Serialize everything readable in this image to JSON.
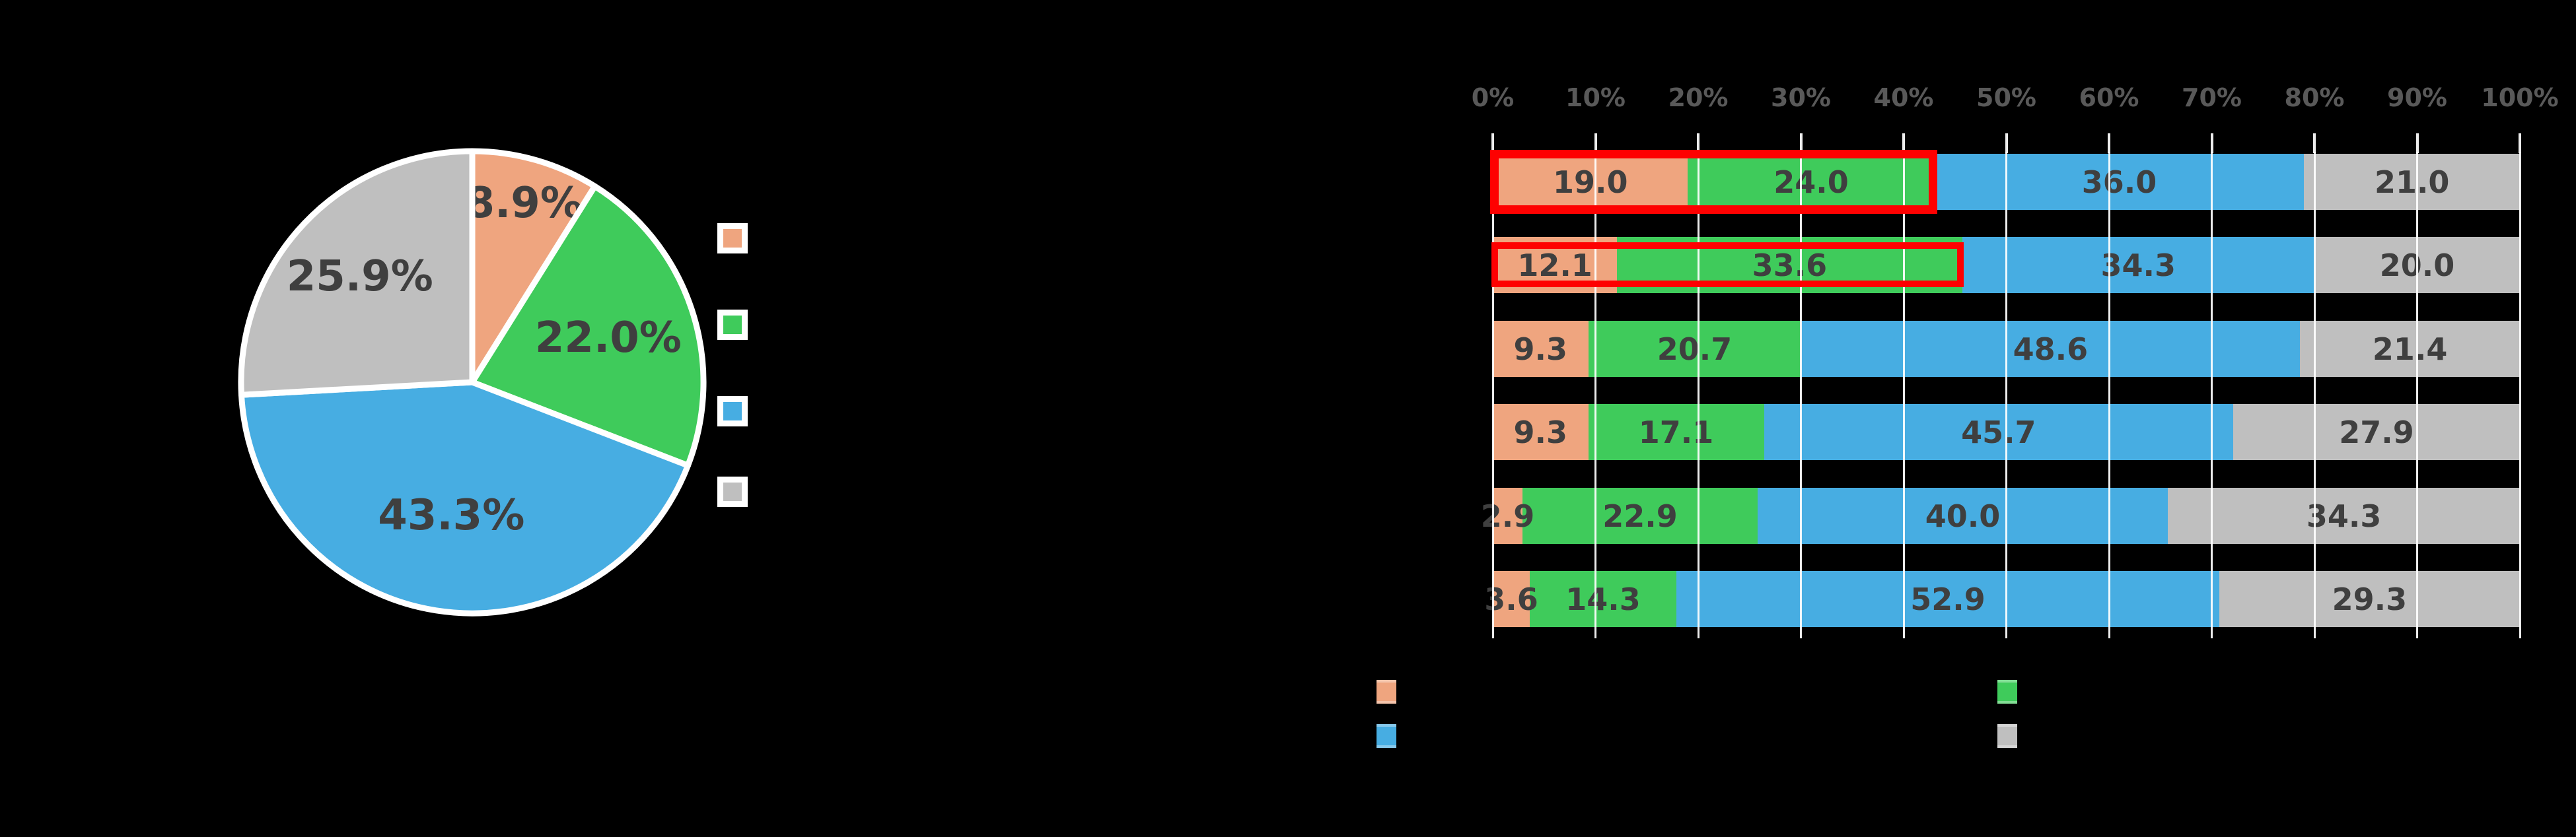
{
  "background_color": "#000000",
  "colors": {
    "salmon": "#efa57f",
    "green": "#3fcb5b",
    "blue": "#47ade2",
    "gray": "#bfbfbf",
    "value_label": "#3f3f3f",
    "axis_label": "#595959",
    "highlight_red": "#fe0101",
    "separator_white": "#ffffff"
  },
  "chart_data": [
    {
      "type": "pie",
      "start_angle": "12 o'clock, clockwise",
      "slices": [
        {
          "value": 8.9,
          "label": "8.9%",
          "color": "salmon"
        },
        {
          "value": 22.0,
          "label": "22.0%",
          "color": "green"
        },
        {
          "value": 43.3,
          "label": "43.3%",
          "color": "blue"
        },
        {
          "value": 25.9,
          "label": "25.9%",
          "color": "gray"
        }
      ],
      "legend": {
        "position": "right",
        "entries": [
          {
            "color": "salmon"
          },
          {
            "color": "green"
          },
          {
            "color": "blue"
          },
          {
            "color": "gray"
          }
        ]
      }
    },
    {
      "type": "bar",
      "orientation": "horizontal-stacked",
      "x_axis": {
        "position": "top",
        "min": 0,
        "max": 100,
        "tick_labels": [
          "0%",
          "10%",
          "20%",
          "30%",
          "40%",
          "50%",
          "60%",
          "70%",
          "80%",
          "90%",
          "100%"
        ],
        "grid": true
      },
      "series_colors": [
        "salmon",
        "green",
        "blue",
        "gray"
      ],
      "rows": [
        {
          "values": [
            19.0,
            24.0,
            36.0,
            21.0
          ],
          "labels": [
            "19.0",
            "24.0",
            "36.0",
            "21.0"
          ],
          "highlight_first_two": true
        },
        {
          "values": [
            12.1,
            33.6,
            34.3,
            20.0
          ],
          "labels": [
            "12.1",
            "33.6",
            "34.3",
            "20.0"
          ],
          "highlight_first_two": true
        },
        {
          "values": [
            9.3,
            20.7,
            48.6,
            21.4
          ],
          "labels": [
            "9.3",
            "20.7",
            "48.6",
            "21.4"
          ],
          "highlight_first_two": false
        },
        {
          "values": [
            9.3,
            17.1,
            45.7,
            27.9
          ],
          "labels": [
            "9.3",
            "17.1",
            "45.7",
            "27.9"
          ],
          "highlight_first_two": false
        },
        {
          "values": [
            2.9,
            22.9,
            40.0,
            34.3
          ],
          "labels": [
            "2.9",
            "22.9",
            "40.0",
            "34.3"
          ],
          "highlight_first_two": false
        },
        {
          "values": [
            3.6,
            14.3,
            52.9,
            29.3
          ],
          "labels": [
            "3.6",
            "14.3",
            "52.9",
            "29.3"
          ],
          "highlight_first_two": false
        }
      ],
      "legend": {
        "position": "bottom",
        "entries": [
          {
            "color": "salmon"
          },
          {
            "color": "green"
          },
          {
            "color": "blue"
          },
          {
            "color": "gray"
          }
        ]
      }
    }
  ]
}
